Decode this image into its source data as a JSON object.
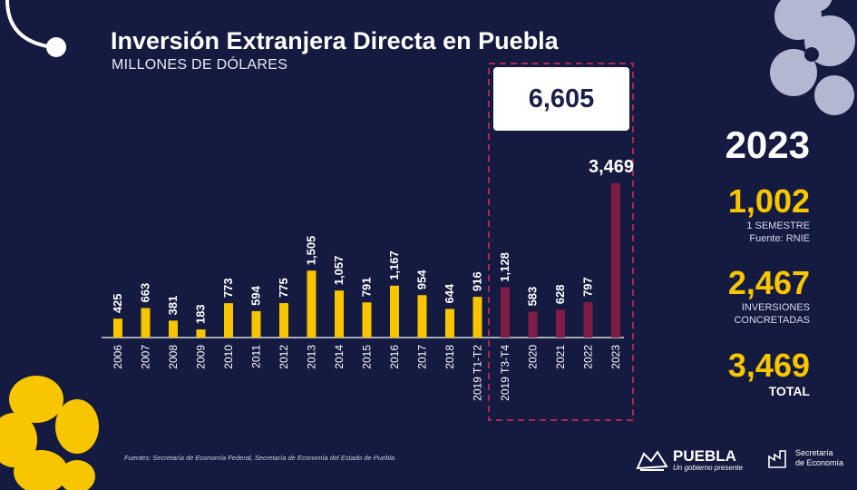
{
  "header": {
    "title": "Inversión Extranjera Directa en Puebla",
    "subtitle": "MILLONES DE DÓLARES"
  },
  "highlight": {
    "total": "6,605"
  },
  "side_panel": {
    "year": "2023",
    "stats": [
      {
        "value": "1,002",
        "label1": "1 SEMESTRE",
        "label2": "Fuente: RNIE"
      },
      {
        "value": "2,467",
        "label1": "INVERSIONES",
        "label2": "CONCRETADAS"
      },
      {
        "value": "3,469",
        "label1": "TOTAL"
      }
    ]
  },
  "footer": {
    "source": "Fuentes: Secretaría de Economía Federal, Secretaría de Economía del Estado de Puebla.",
    "logo_name": "PUEBLA",
    "logo_tagline": "Un gobierno presente",
    "secretaria_line1": "Secretaría",
    "secretaria_line2": "de Economía"
  },
  "colors": {
    "background": "#141a40",
    "bar_primary": "#f7c600",
    "bar_highlight": "#7f1d47",
    "dashed_border": "#b0264f",
    "accent_flower": "#f7c600",
    "decor_light": "#c6c9e2"
  },
  "chart_data": {
    "type": "bar",
    "title": "Inversión Extranjera Directa en Puebla",
    "subtitle": "MILLONES DE DÓLARES",
    "categories": [
      "2006",
      "2007",
      "2008",
      "2009",
      "2010",
      "2011",
      "2012",
      "2013",
      "2014",
      "2015",
      "2016",
      "2017",
      "2018",
      "2019 T1-T2",
      "2019 T3-T4",
      "2020",
      "2021",
      "2022",
      "2023"
    ],
    "values": [
      425,
      663,
      381,
      183,
      773,
      594,
      775,
      1505,
      1057,
      791,
      1167,
      954,
      644,
      916,
      1128,
      583,
      628,
      797,
      3469
    ],
    "value_labels": [
      "425",
      "663",
      "381",
      "183",
      "773",
      "594",
      "775",
      "1,505",
      "1,057",
      "791",
      "1,167",
      "954",
      "644",
      "916",
      "1,128",
      "583",
      "628",
      "797",
      "3,469"
    ],
    "highlight_from_index": 14,
    "highlight_total": "6,605",
    "ylim": [
      0,
      3469
    ],
    "grid": false,
    "legend": "none"
  }
}
